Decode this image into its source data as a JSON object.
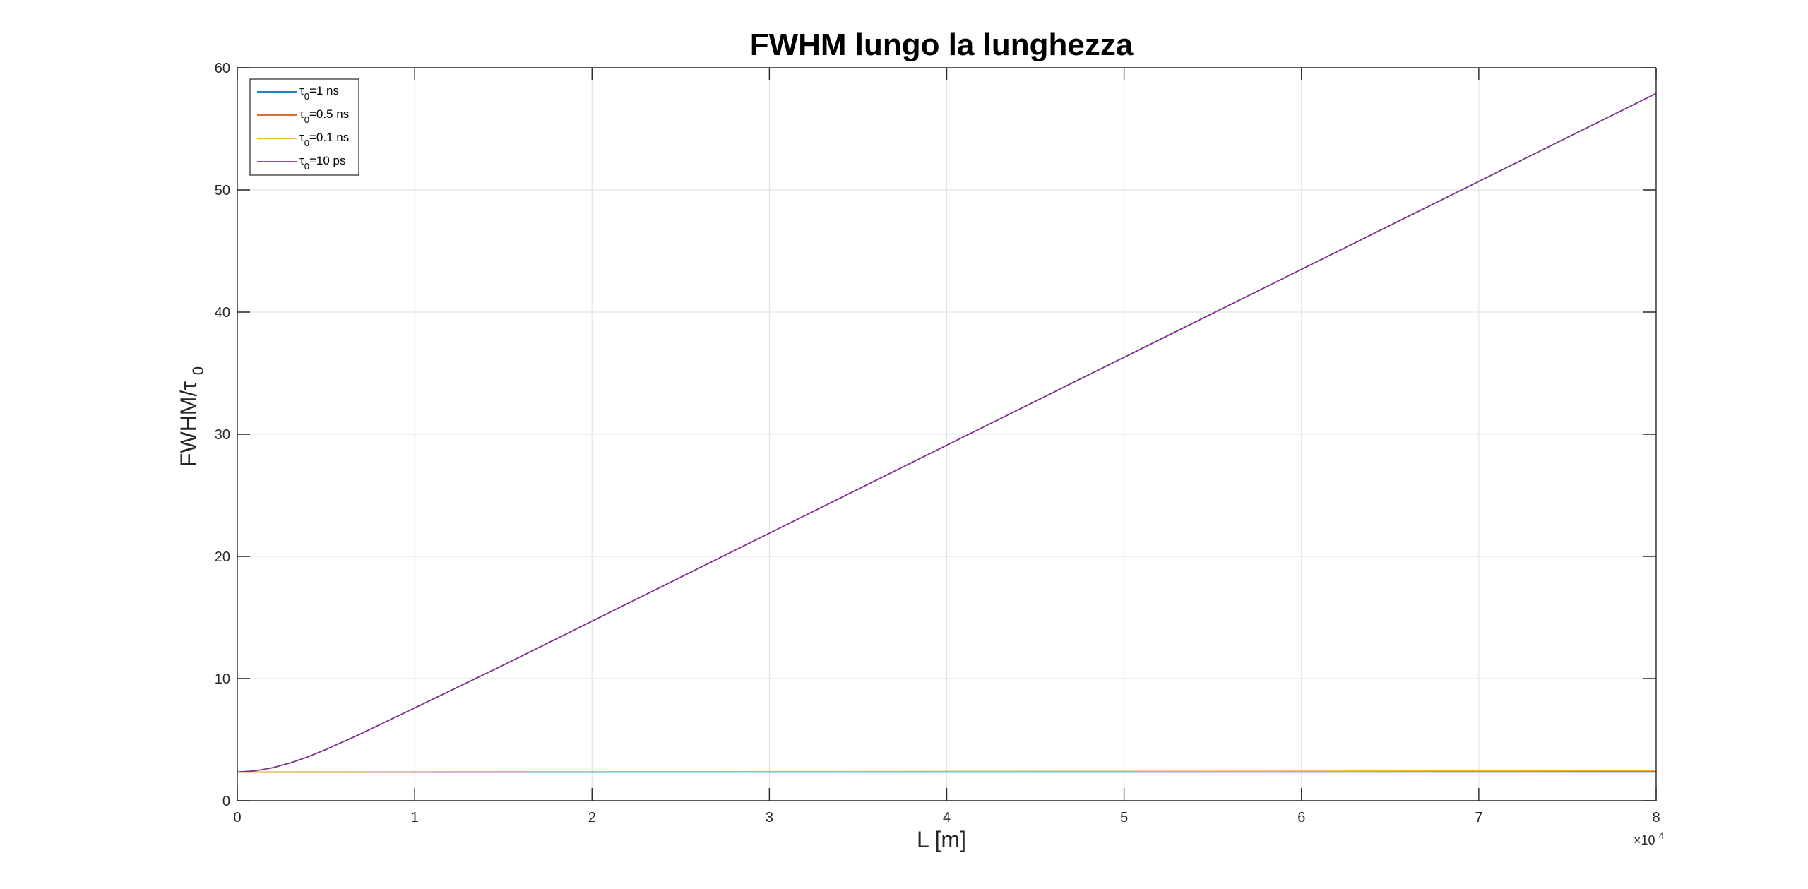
{
  "chart_data": {
    "type": "line",
    "title": "FWHM lungo la lunghezza",
    "xlabel": "L [m]",
    "ylabel": {
      "main": "FWHM/τ",
      "subscript": "0"
    },
    "x_exponent": {
      "base": "×10",
      "power": "4"
    },
    "xlim": [
      0,
      80000
    ],
    "ylim": [
      0,
      60
    ],
    "x_ticks": [
      0,
      10000,
      20000,
      30000,
      40000,
      50000,
      60000,
      70000,
      80000
    ],
    "x_tick_labels": [
      "0",
      "1",
      "2",
      "3",
      "4",
      "5",
      "6",
      "7",
      "8"
    ],
    "y_ticks": [
      0,
      10,
      20,
      30,
      40,
      50,
      60
    ],
    "y_tick_labels": [
      "0",
      "10",
      "20",
      "30",
      "40",
      "50",
      "60"
    ],
    "grid": true,
    "legend_position": "top-left",
    "series": [
      {
        "name": "τ0=1 ns",
        "name_parts": {
          "symbol": "τ",
          "subscript": "0",
          "rest": "=1 ns"
        },
        "color": "#0072BD",
        "x": [
          0,
          10000,
          20000,
          30000,
          40000,
          50000,
          60000,
          70000,
          80000
        ],
        "y": [
          2.35,
          2.35,
          2.35,
          2.35,
          2.35,
          2.35,
          2.35,
          2.35,
          2.35
        ]
      },
      {
        "name": "τ0=0.5 ns",
        "name_parts": {
          "symbol": "τ",
          "subscript": "0",
          "rest": "=0.5 ns"
        },
        "color": "#D95319",
        "x": [
          0,
          10000,
          20000,
          30000,
          40000,
          50000,
          60000,
          70000,
          80000
        ],
        "y": [
          2.35,
          2.35,
          2.36,
          2.37,
          2.38,
          2.39,
          2.4,
          2.42,
          2.43
        ]
      },
      {
        "name": "τ0=0.1 ns",
        "name_parts": {
          "symbol": "τ",
          "subscript": "0",
          "rest": "=0.1 ns"
        },
        "color": "#EDB120",
        "x": [
          0,
          10000,
          20000,
          30000,
          40000,
          50000,
          60000,
          70000,
          80000
        ],
        "y": [
          2.35,
          2.36,
          2.37,
          2.38,
          2.39,
          2.4,
          2.42,
          2.44,
          2.46
        ]
      },
      {
        "name": "τ0=10 ps",
        "name_parts": {
          "symbol": "τ",
          "subscript": "0",
          "rest": "=10 ps"
        },
        "color": "#7E2F8E",
        "x": [
          0,
          1000,
          2000,
          3000,
          4000,
          5000,
          6000,
          7000,
          8000,
          9000,
          10000,
          12000,
          15000,
          20000,
          25000,
          30000,
          35000,
          40000,
          45000,
          50000,
          55000,
          60000,
          65000,
          70000,
          75000,
          80000
        ],
        "y": [
          2.35,
          2.45,
          2.7,
          3.1,
          3.6,
          4.2,
          4.85,
          5.5,
          6.2,
          6.9,
          7.6,
          9.0,
          11.1,
          14.7,
          18.3,
          21.9,
          25.5,
          29.1,
          32.7,
          36.3,
          39.9,
          43.5,
          47.1,
          50.7,
          54.3,
          57.9
        ]
      }
    ]
  }
}
